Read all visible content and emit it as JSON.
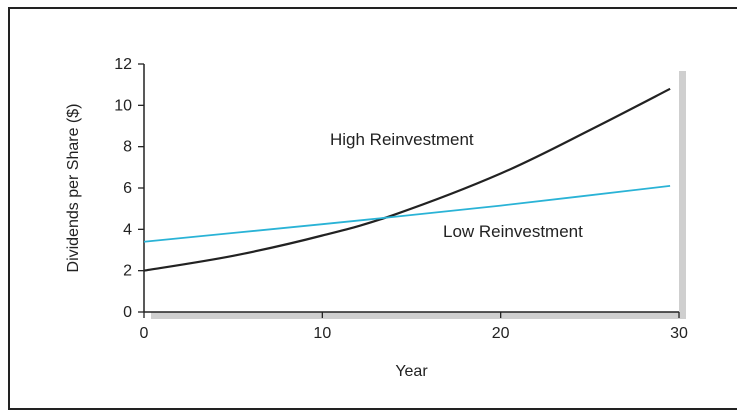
{
  "chart_data": {
    "type": "line",
    "xlabel": "Year",
    "ylabel": "Dividends per Share ($)",
    "xlim": [
      0,
      30
    ],
    "ylim": [
      0,
      12
    ],
    "xticks": [
      0,
      10,
      20,
      30
    ],
    "yticks": [
      0,
      2,
      4,
      6,
      8,
      10,
      12
    ],
    "grid": false,
    "shadow_color": "#cfcfcf",
    "series": [
      {
        "name": "High Reinvestment",
        "color": "#222222",
        "x": [
          0,
          5,
          10,
          14,
          20,
          25,
          29.5
        ],
        "y": [
          2.0,
          2.72,
          3.7,
          4.7,
          6.7,
          8.8,
          10.8
        ]
      },
      {
        "name": "Low Reinvestment",
        "color": "#2ab3d6",
        "x": [
          0,
          10,
          14,
          20,
          29.5
        ],
        "y": [
          3.4,
          4.25,
          4.6,
          5.15,
          6.1
        ]
      }
    ]
  }
}
